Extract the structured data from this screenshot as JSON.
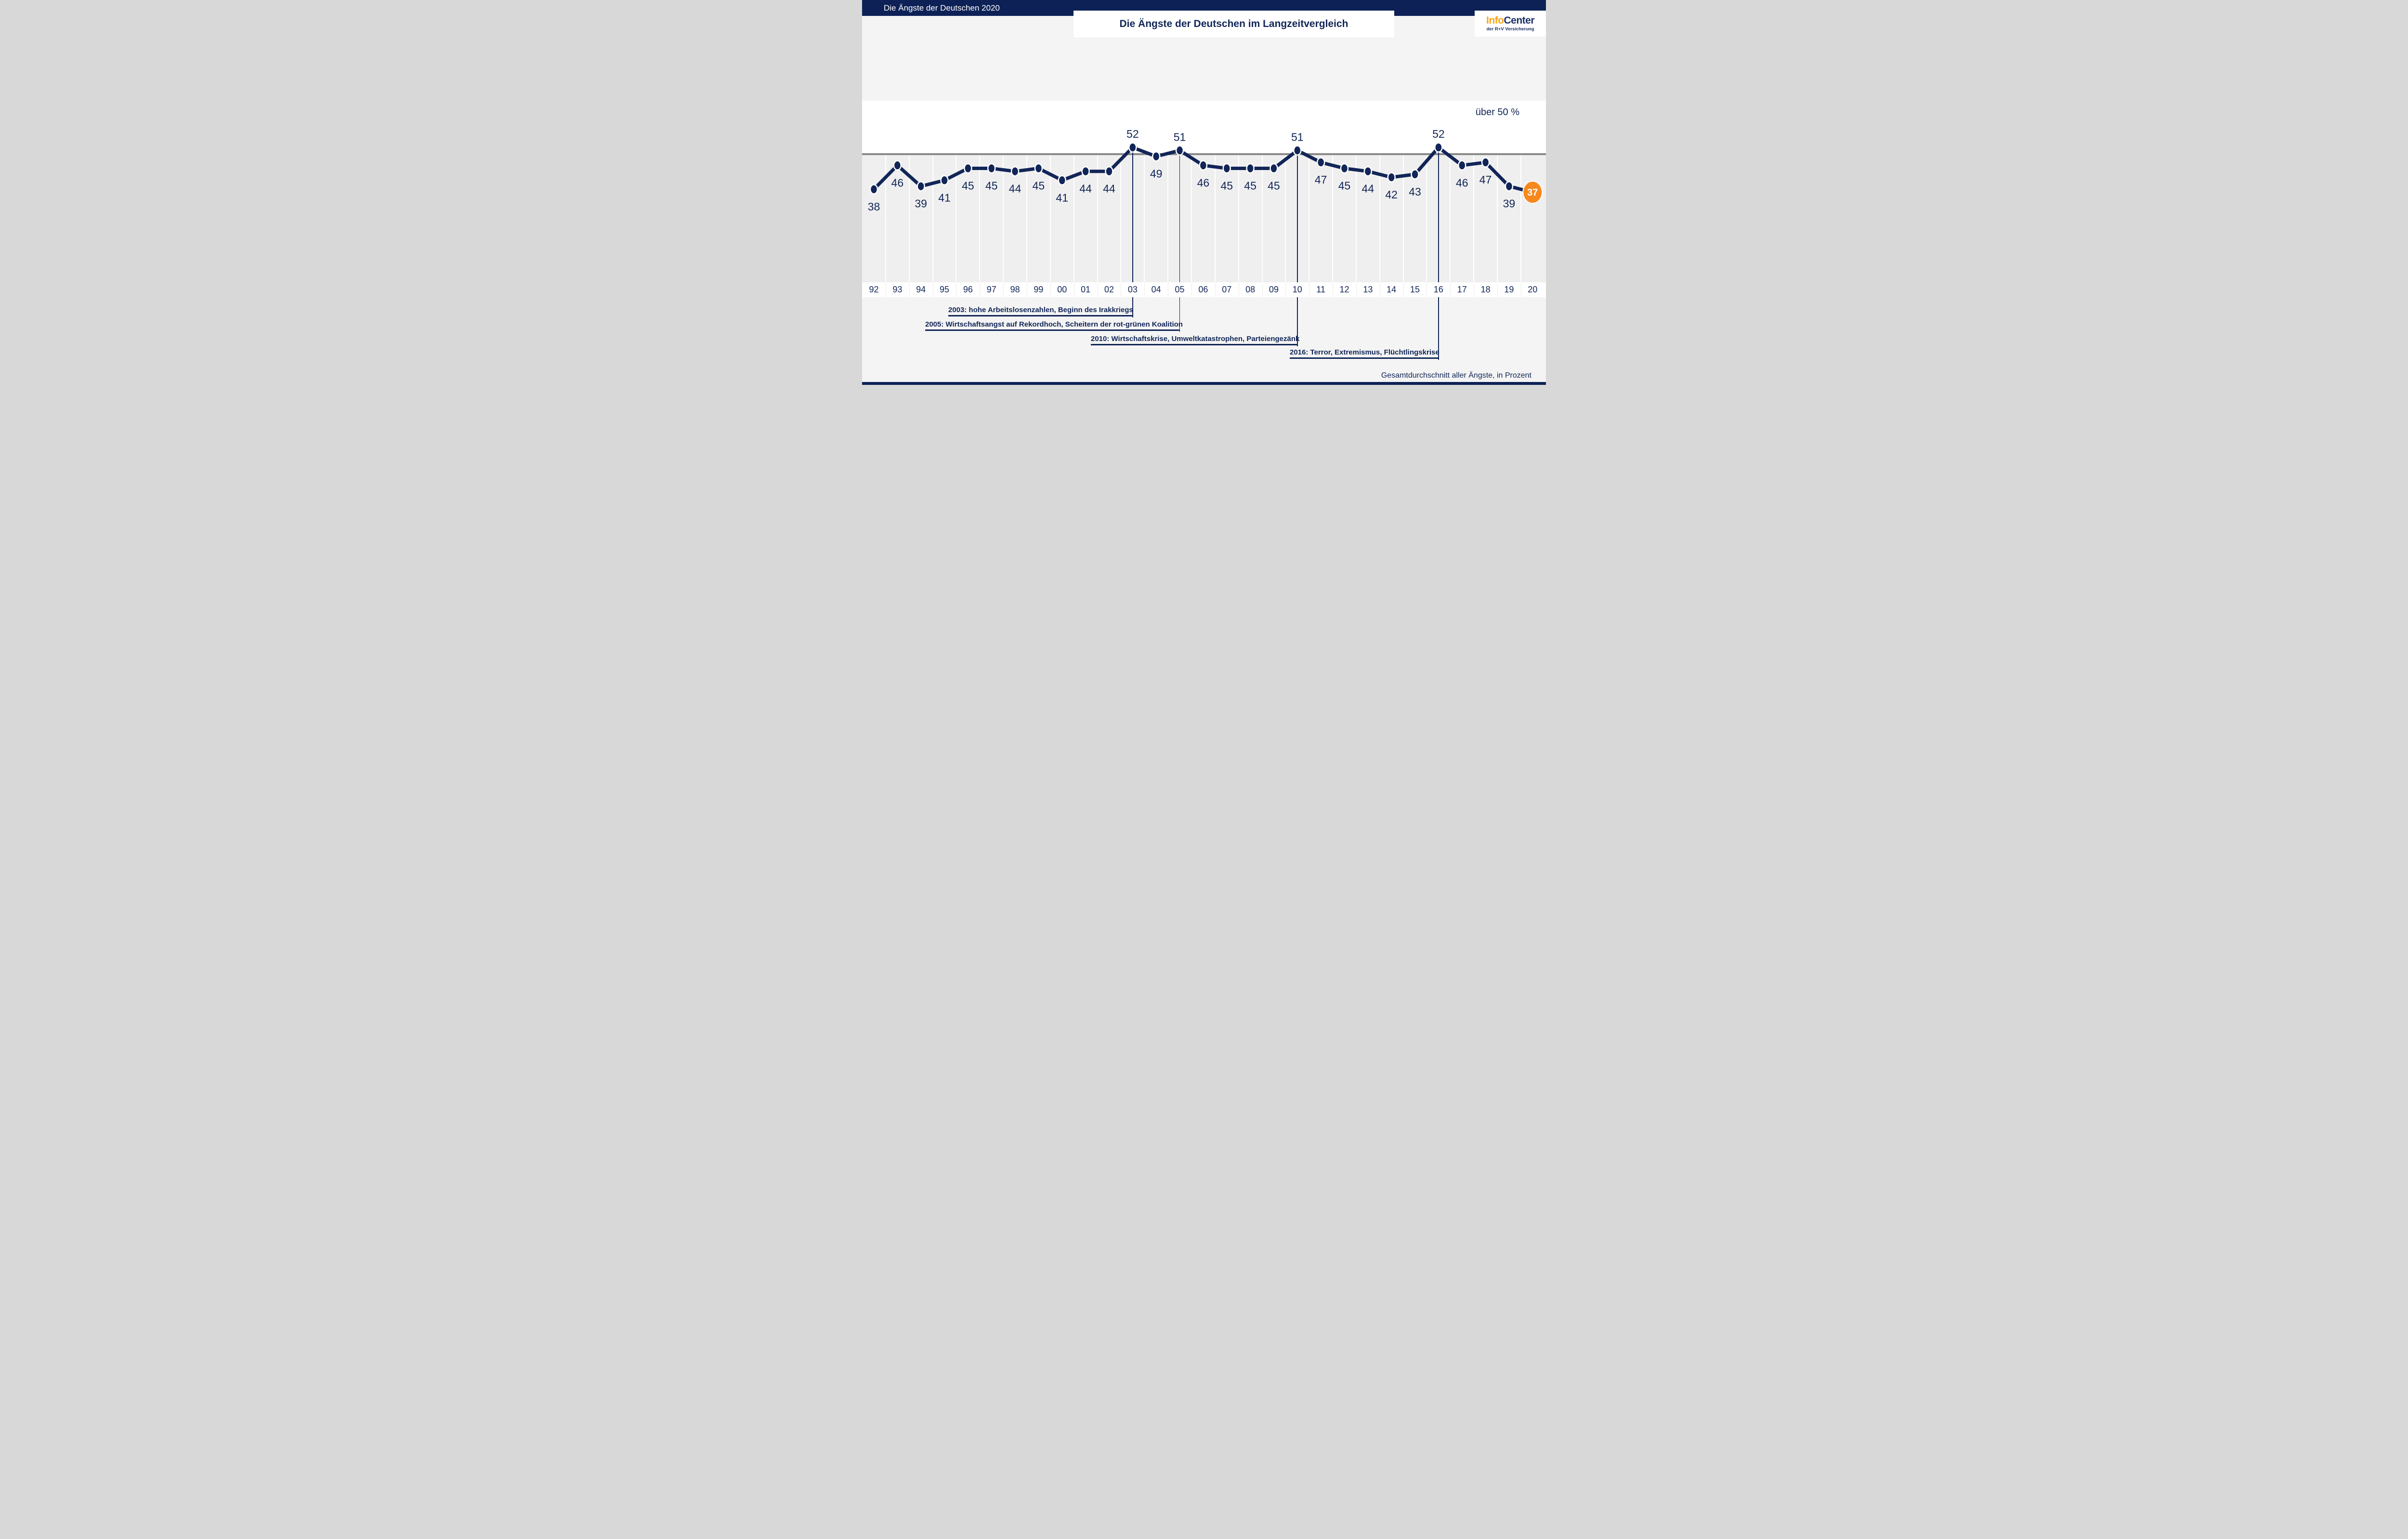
{
  "page": {
    "header_bar_title": "Die Ängste der Deutschen 2020",
    "title": "Die Ängste der Deutschen im Langzeitvergleich",
    "logo": {
      "part1": "Info",
      "part2": "Center",
      "subtitle": "der R+V Versicherung"
    },
    "threshold_label": "über 50 %",
    "footer_note": "Gesamtdurchschnitt aller Ängste, in Prozent"
  },
  "colors": {
    "navy": "#112557",
    "header_navy": "#0D2156",
    "orange_highlight": "#F6891E",
    "logo_orange": "#F9A61B",
    "page_bg": "#F4F4F4",
    "column_bg": "#EFEFEF",
    "threshold_gray": "#8A8A8A",
    "white": "#FFFFFF"
  },
  "chart_data": {
    "type": "line",
    "title": "Die Ängste der Deutschen im Langzeitvergleich",
    "x": [
      "92",
      "93",
      "94",
      "95",
      "96",
      "97",
      "98",
      "99",
      "00",
      "01",
      "02",
      "03",
      "04",
      "05",
      "06",
      "07",
      "08",
      "09",
      "10",
      "11",
      "12",
      "13",
      "14",
      "15",
      "16",
      "17",
      "18",
      "19",
      "20"
    ],
    "values": [
      38,
      46,
      39,
      41,
      45,
      45,
      44,
      45,
      41,
      44,
      44,
      52,
      49,
      51,
      46,
      45,
      45,
      45,
      51,
      47,
      45,
      44,
      42,
      43,
      52,
      46,
      47,
      39,
      37
    ],
    "threshold": 50,
    "threshold_label": "über 50 %",
    "unit_note": "Gesamtdurchschnitt aller Ängste, in Prozent",
    "highlight_year": "20",
    "highlight_value": 37,
    "legend_position": "none",
    "grid": "vertical-column-separators",
    "annotations": [
      {
        "year": "03",
        "text": "2003: hohe Arbeitslosenzahlen, Beginn des Irakkriegs"
      },
      {
        "year": "05",
        "text": "2005: Wirtschaftsangst auf Rekordhoch, Scheitern der rot-grünen Koalition"
      },
      {
        "year": "10",
        "text": "2010: Wirtschaftskrise, Umweltkatastrophen, Parteiengezänk"
      },
      {
        "year": "16",
        "text": "2016: Terror, Extremismus, Flüchtlingskrise"
      }
    ]
  }
}
